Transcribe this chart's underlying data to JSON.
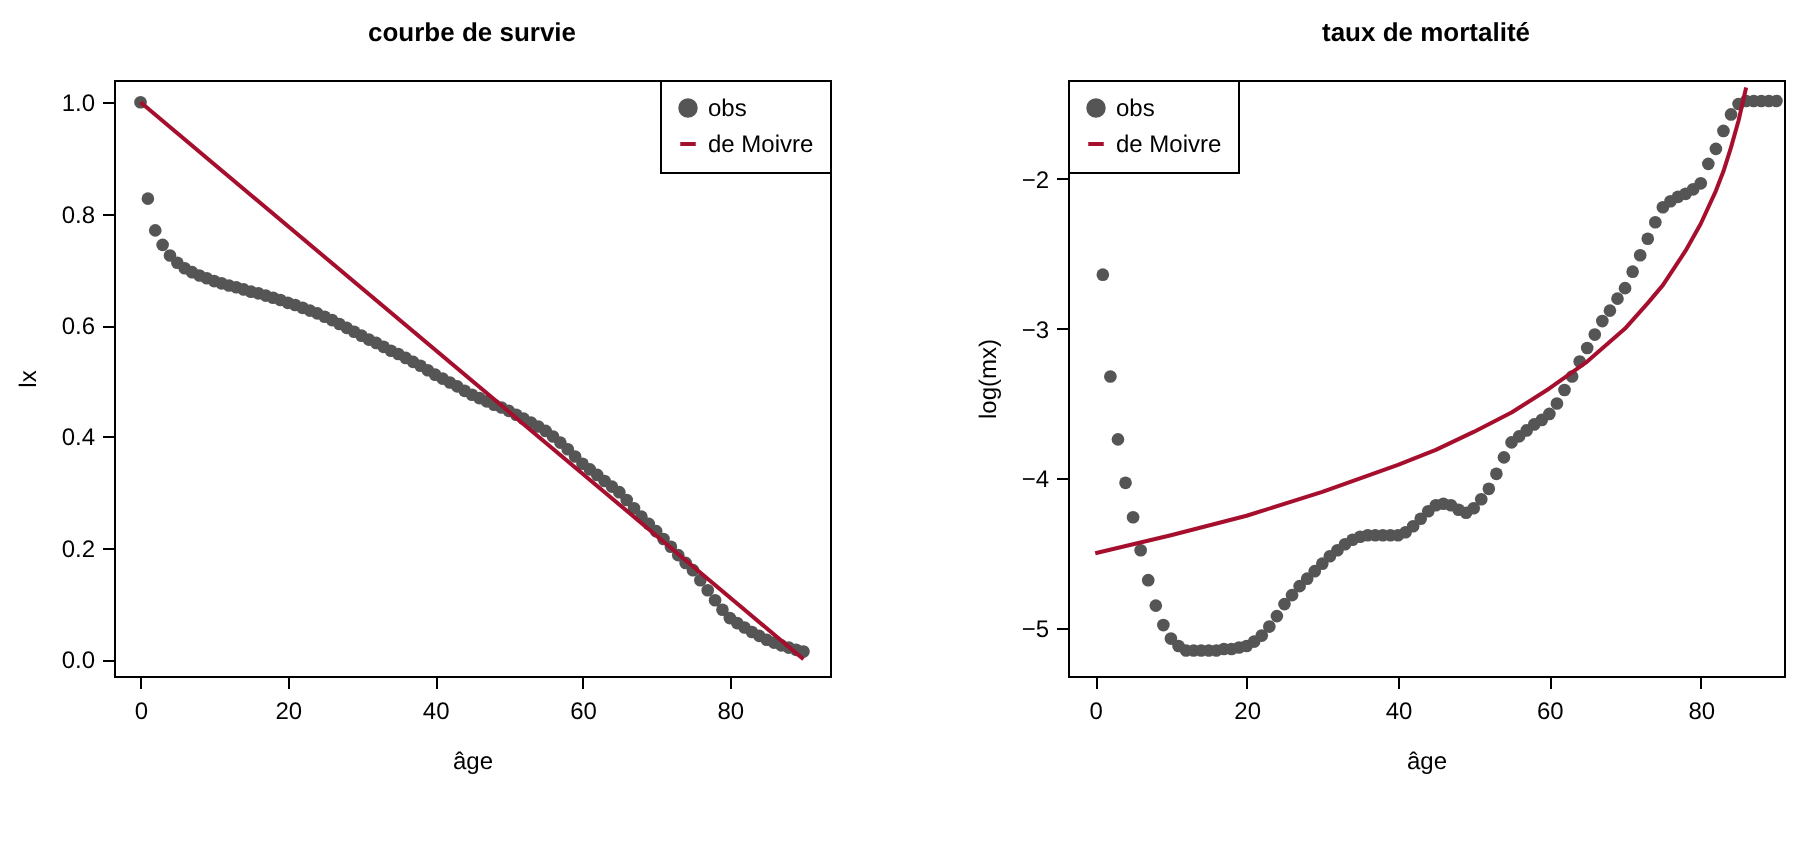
{
  "chart_data": [
    {
      "type": "scatter",
      "title": "courbe de survie",
      "xlabel": "âge",
      "ylabel": "lx",
      "xlim": [
        -3.6,
        93.6
      ],
      "ylim": [
        -0.03,
        1.04
      ],
      "xticks": [
        0,
        20,
        40,
        60,
        80
      ],
      "yticks": [
        {
          "value": 0,
          "label": "0.0"
        },
        {
          "value": 0.2,
          "label": "0.2"
        },
        {
          "value": 0.4,
          "label": "0.4"
        },
        {
          "value": 0.6,
          "label": "0.6"
        },
        {
          "value": 0.8,
          "label": "0.8"
        },
        {
          "value": 1,
          "label": "1.0"
        }
      ],
      "grid": false,
      "legend": "top right",
      "series": [
        {
          "name": "obs",
          "marker": "circle",
          "color": "#555555",
          "x": [
            0,
            1,
            2,
            3,
            4,
            5,
            6,
            7,
            8,
            9,
            10,
            11,
            12,
            13,
            14,
            15,
            16,
            17,
            18,
            19,
            20,
            21,
            22,
            23,
            24,
            25,
            26,
            27,
            28,
            29,
            30,
            31,
            32,
            33,
            34,
            35,
            36,
            37,
            38,
            39,
            40,
            41,
            42,
            43,
            44,
            45,
            46,
            47,
            48,
            49,
            50,
            51,
            52,
            53,
            54,
            55,
            56,
            57,
            58,
            59,
            60,
            61,
            62,
            63,
            64,
            65,
            66,
            67,
            68,
            69,
            70,
            71,
            72,
            73,
            74,
            75,
            76,
            77,
            78,
            79,
            80,
            81,
            82,
            83,
            84,
            85,
            86,
            87,
            88,
            89,
            90
          ],
          "values": [
            1.0,
            0.827,
            0.77,
            0.744,
            0.725,
            0.712,
            0.702,
            0.695,
            0.689,
            0.684,
            0.679,
            0.675,
            0.671,
            0.668,
            0.664,
            0.66,
            0.657,
            0.653,
            0.649,
            0.645,
            0.64,
            0.636,
            0.631,
            0.626,
            0.621,
            0.615,
            0.609,
            0.602,
            0.595,
            0.588,
            0.581,
            0.574,
            0.568,
            0.561,
            0.554,
            0.548,
            0.541,
            0.534,
            0.527,
            0.519,
            0.511,
            0.504,
            0.497,
            0.49,
            0.482,
            0.475,
            0.469,
            0.463,
            0.457,
            0.452,
            0.446,
            0.439,
            0.432,
            0.425,
            0.418,
            0.41,
            0.4,
            0.389,
            0.377,
            0.364,
            0.351,
            0.341,
            0.331,
            0.32,
            0.31,
            0.3,
            0.286,
            0.271,
            0.256,
            0.243,
            0.23,
            0.216,
            0.202,
            0.187,
            0.173,
            0.16,
            0.142,
            0.124,
            0.106,
            0.089,
            0.074,
            0.065,
            0.057,
            0.049,
            0.042,
            0.035,
            0.03,
            0.025,
            0.021,
            0.017,
            0.014
          ]
        },
        {
          "name": "de Moivre",
          "type": "line",
          "line_style": "solid",
          "color": "#a50f2d",
          "x": [
            0,
            90
          ],
          "values": [
            1.0,
            0.0
          ]
        }
      ]
    },
    {
      "type": "scatter",
      "title": "taux de mortalité",
      "xlabel": "âge",
      "ylabel": "log(mx)",
      "xlim": [
        -3.6,
        91
      ],
      "ylim": [
        -5.32,
        -1.34
      ],
      "xticks": [
        0,
        20,
        40,
        60,
        80
      ],
      "yticks": [
        {
          "value": -5,
          "label": "−5"
        },
        {
          "value": -4,
          "label": "−4"
        },
        {
          "value": -3,
          "label": "−3"
        },
        {
          "value": -2,
          "label": "−2"
        }
      ],
      "grid": false,
      "legend": "top left",
      "series": [
        {
          "name": "obs",
          "marker": "circle",
          "color": "#555555",
          "x": [
            1,
            2,
            3,
            4,
            5,
            6,
            7,
            8,
            9,
            10,
            11,
            12,
            13,
            14,
            15,
            16,
            17,
            18,
            19,
            20,
            21,
            22,
            23,
            24,
            25,
            26,
            27,
            28,
            29,
            30,
            31,
            32,
            33,
            34,
            35,
            36,
            37,
            38,
            39,
            40,
            41,
            42,
            43,
            44,
            45,
            46,
            47,
            48,
            49,
            50,
            51,
            52,
            53,
            54,
            55,
            56,
            57,
            58,
            59,
            60,
            61,
            62,
            63,
            64,
            65,
            66,
            67,
            68,
            69,
            70,
            71,
            72,
            73,
            74,
            75,
            76,
            77,
            78,
            79,
            80,
            81,
            82,
            83,
            84,
            85,
            86,
            87,
            88,
            89,
            90
          ],
          "values": [
            -2.64,
            -3.32,
            -3.74,
            -4.03,
            -4.26,
            -4.48,
            -4.68,
            -4.85,
            -4.98,
            -5.07,
            -5.12,
            -5.15,
            -5.15,
            -5.15,
            -5.15,
            -5.15,
            -5.14,
            -5.14,
            -5.13,
            -5.12,
            -5.09,
            -5.05,
            -4.99,
            -4.92,
            -4.84,
            -4.78,
            -4.72,
            -4.67,
            -4.62,
            -4.57,
            -4.52,
            -4.48,
            -4.44,
            -4.41,
            -4.39,
            -4.38,
            -4.38,
            -4.38,
            -4.38,
            -4.38,
            -4.36,
            -4.32,
            -4.27,
            -4.22,
            -4.18,
            -4.17,
            -4.18,
            -4.21,
            -4.23,
            -4.2,
            -4.14,
            -4.07,
            -3.97,
            -3.86,
            -3.76,
            -3.72,
            -3.68,
            -3.64,
            -3.61,
            -3.57,
            -3.5,
            -3.41,
            -3.32,
            -3.22,
            -3.13,
            -3.04,
            -2.95,
            -2.88,
            -2.8,
            -2.73,
            -2.62,
            -2.51,
            -2.4,
            -2.29,
            -2.19,
            -2.15,
            -2.12,
            -2.1,
            -2.07,
            -2.03,
            -1.9,
            -1.8,
            -1.68,
            -1.57,
            -1.5,
            -1.48,
            -1.48,
            -1.48,
            -1.48,
            -1.48
          ]
        },
        {
          "name": "de Moivre",
          "type": "line",
          "line_style": "solid",
          "color": "#a50f2d",
          "x": [
            0,
            10,
            20,
            30,
            40,
            45,
            50,
            55,
            60,
            65,
            70,
            73,
            75,
            78,
            80,
            82,
            83,
            84,
            85,
            86
          ],
          "values": [
            -4.5,
            -4.38,
            -4.25,
            -4.09,
            -3.91,
            -3.81,
            -3.69,
            -3.56,
            -3.4,
            -3.22,
            -3.0,
            -2.83,
            -2.71,
            -2.48,
            -2.3,
            -2.08,
            -1.95,
            -1.79,
            -1.61,
            -1.39
          ]
        }
      ]
    }
  ]
}
